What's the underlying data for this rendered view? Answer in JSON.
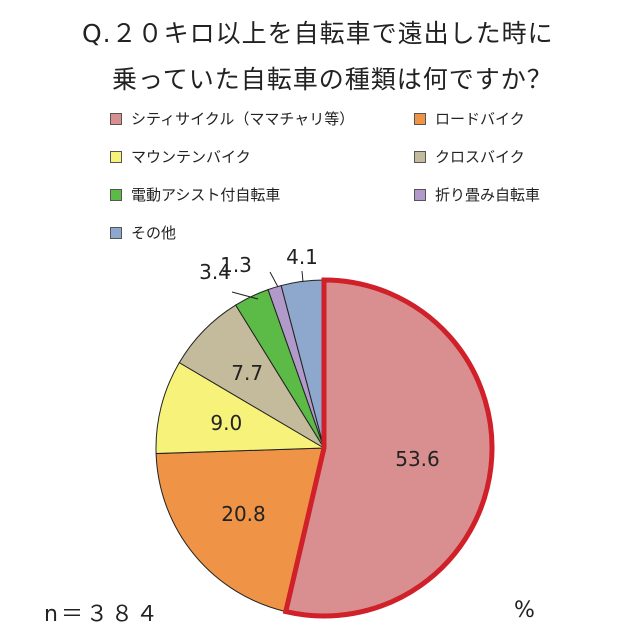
{
  "title": {
    "line1": "Q.２０キロ以上を自転車で遠出した時に",
    "line2": "乗っていた自転車の種類は何ですか？"
  },
  "legend": [
    {
      "label": "シティサイクル（ママチャリ等）",
      "color": "#d98f8f"
    },
    {
      "label": "ロードバイク",
      "color": "#ef9446"
    },
    {
      "label": "マウンテンバイク",
      "color": "#f6f27a"
    },
    {
      "label": "クロスバイク",
      "color": "#c4bb9c"
    },
    {
      "label": "電動アシスト付自転車",
      "color": "#5cba47"
    },
    {
      "label": "折り畳み自転車",
      "color": "#b19ac9"
    },
    {
      "label": "その他",
      "color": "#8ea7cc"
    }
  ],
  "footer": {
    "n": "n＝３８４",
    "unit": "%"
  },
  "chart_data": {
    "type": "pie",
    "start": "12 o'clock",
    "direction": "clockwise",
    "highlight": {
      "slice": "シティサイクル（ママチャリ等）",
      "outline_color": "#d0202a"
    },
    "slices": [
      {
        "name": "シティサイクル（ママチャリ等）",
        "value": 53.6,
        "label": "53.6",
        "color": "#d98f8f"
      },
      {
        "name": "ロードバイク",
        "value": 20.8,
        "label": "20.8",
        "color": "#ef9446"
      },
      {
        "name": "マウンテンバイク",
        "value": 9.0,
        "label": "9.0",
        "color": "#f6f27a"
      },
      {
        "name": "クロスバイク",
        "value": 7.7,
        "label": "7.7",
        "color": "#c4bb9c"
      },
      {
        "name": "電動アシスト付自転車",
        "value": 3.4,
        "label": "3.4",
        "color": "#5cba47"
      },
      {
        "name": "折り畳み自転車",
        "value": 1.3,
        "label": "1.3",
        "color": "#b19ac9"
      },
      {
        "name": "その他",
        "value": 4.1,
        "label": "4.1",
        "color": "#8ea7cc"
      }
    ]
  }
}
